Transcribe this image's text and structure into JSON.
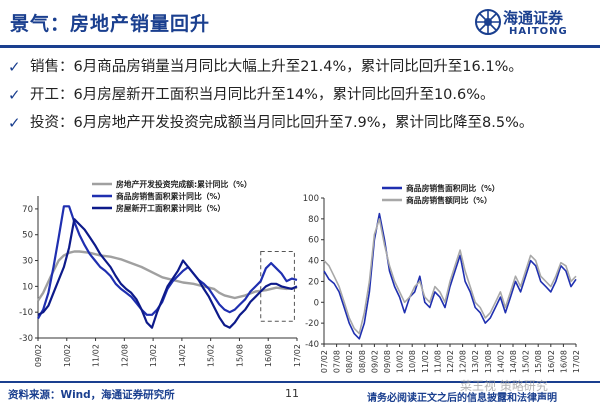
{
  "header": {
    "title": "景气：房地产销量回升"
  },
  "logo": {
    "cn": "海通证券",
    "en": "HAITONG",
    "color": "#1a3f8f"
  },
  "bullets": [
    {
      "icon": "check-icon",
      "text": "销售：6月商品房销量当月同比大幅上升至21.4%，累计同比回升至16.1%。"
    },
    {
      "icon": "check-icon",
      "text": "开工：6月房屋新开工面积当月同比升至14%，累计同比回升至10.6%。"
    },
    {
      "icon": "check-icon",
      "text": "投资：6月房地产开发投资完成额当月同比回升至7.9%，累计同比降至8.5%。"
    }
  ],
  "chart_data": [
    {
      "type": "line",
      "title": "",
      "xlabel": "",
      "ylabel": "",
      "ylim": [
        -30,
        80
      ],
      "yticks": [
        -30,
        -10,
        10,
        30,
        50,
        70
      ],
      "x_ticks": [
        "09/02",
        "10/02",
        "11/02",
        "12/08",
        "13/02",
        "14/02",
        "15/02",
        "15/08",
        "16/08",
        "17/02"
      ],
      "grid": false,
      "legend": "top-right",
      "highlight": "dashed box around 16/02–17/06",
      "series": [
        {
          "name": "房地产开发投资完成额:累计同比（%）",
          "color": "#a0a0a0",
          "width": 2.4,
          "x": [
            0,
            2,
            5,
            8,
            10,
            12,
            14,
            16,
            20,
            24,
            28,
            30,
            32,
            36,
            40,
            44,
            48,
            52,
            56,
            60,
            64,
            68,
            70,
            72,
            76,
            80,
            84,
            88,
            92,
            96,
            100
          ],
          "values": [
            -1,
            5,
            18,
            30,
            34,
            36,
            37,
            37,
            36,
            34,
            33,
            32,
            31,
            28,
            25,
            21,
            17,
            15,
            13,
            12,
            10,
            8,
            5,
            3,
            1,
            3,
            6,
            7,
            9,
            8,
            9
          ]
        },
        {
          "name": "商品房销售面积累计同比（%）",
          "color": "#1f2fb0",
          "width": 2.2,
          "x": [
            0,
            2,
            4,
            6,
            8,
            10,
            12,
            14,
            16,
            18,
            20,
            22,
            24,
            26,
            28,
            30,
            32,
            34,
            36,
            38,
            40,
            42,
            44,
            46,
            48,
            50,
            52,
            54,
            56,
            58,
            60,
            62,
            64,
            66,
            68,
            70,
            72,
            74,
            76,
            78,
            80,
            82,
            84,
            86,
            88,
            90,
            92,
            94,
            96,
            98,
            100
          ],
          "values": [
            -15,
            -8,
            5,
            25,
            48,
            72,
            72,
            60,
            50,
            42,
            35,
            30,
            25,
            22,
            18,
            12,
            8,
            5,
            2,
            -3,
            -8,
            -12,
            -12,
            -8,
            -2,
            8,
            14,
            18,
            22,
            25,
            20,
            15,
            12,
            8,
            2,
            -4,
            -8,
            -10,
            -8,
            -4,
            0,
            6,
            10,
            14,
            24,
            28,
            24,
            20,
            14,
            16,
            15
          ]
        },
        {
          "name": "房屋新开工面积累计同比（%）",
          "color": "#0d1a8a",
          "width": 2.2,
          "x": [
            0,
            2,
            4,
            6,
            8,
            10,
            12,
            14,
            16,
            18,
            20,
            22,
            24,
            26,
            28,
            30,
            32,
            34,
            36,
            38,
            40,
            42,
            44,
            46,
            48,
            50,
            52,
            54,
            56,
            58,
            60,
            62,
            64,
            66,
            68,
            70,
            72,
            74,
            76,
            78,
            80,
            82,
            84,
            86,
            88,
            90,
            92,
            94,
            96,
            98,
            100
          ],
          "values": [
            -12,
            -10,
            -5,
            5,
            15,
            25,
            40,
            62,
            58,
            54,
            48,
            42,
            35,
            30,
            25,
            18,
            12,
            8,
            5,
            0,
            -8,
            -18,
            -22,
            -10,
            0,
            10,
            16,
            22,
            30,
            25,
            20,
            15,
            8,
            2,
            -6,
            -14,
            -20,
            -22,
            -18,
            -12,
            -8,
            -2,
            2,
            6,
            10,
            12,
            12,
            10,
            9,
            8,
            10
          ]
        }
      ]
    },
    {
      "type": "line",
      "title": "",
      "xlabel": "",
      "ylabel": "",
      "ylim": [
        -40,
        100
      ],
      "yticks": [
        -40,
        -20,
        0,
        20,
        40,
        60,
        80,
        100
      ],
      "x_ticks": [
        "07/02",
        "07/08",
        "08/02",
        "08/08",
        "09/02",
        "09/08",
        "10/02",
        "10/08",
        "11/02",
        "11/08",
        "12/02",
        "12/08",
        "13/02",
        "13/08",
        "14/02",
        "14/08",
        "15/02",
        "15/08",
        "16/02",
        "16/08",
        "17/02"
      ],
      "grid": false,
      "legend": "top-right",
      "series": [
        {
          "name": "商品房销售面积同比（%）",
          "color": "#1f2fb0",
          "width": 1.6,
          "x": [
            0,
            2,
            4,
            6,
            8,
            10,
            12,
            14,
            16,
            18,
            20,
            22,
            24,
            26,
            28,
            30,
            32,
            34,
            36,
            38,
            40,
            42,
            44,
            46,
            48,
            50,
            52,
            54,
            56,
            58,
            60,
            62,
            64,
            66,
            68,
            70,
            72,
            74,
            76,
            78,
            80,
            82,
            84,
            86,
            88,
            90,
            92,
            94,
            96,
            98,
            100
          ],
          "values": [
            30,
            22,
            18,
            10,
            -5,
            -20,
            -30,
            -35,
            -20,
            10,
            60,
            85,
            60,
            30,
            15,
            5,
            -10,
            5,
            10,
            25,
            0,
            -5,
            10,
            5,
            -5,
            15,
            30,
            45,
            20,
            10,
            -5,
            -10,
            -20,
            -15,
            -5,
            5,
            -10,
            5,
            20,
            10,
            25,
            40,
            35,
            20,
            15,
            10,
            20,
            35,
            30,
            15,
            22
          ]
        },
        {
          "name": "商品房销售额同比（%）",
          "color": "#a8a8a8",
          "width": 1.6,
          "x": [
            0,
            2,
            4,
            6,
            8,
            10,
            12,
            14,
            16,
            18,
            20,
            22,
            24,
            26,
            28,
            30,
            32,
            34,
            36,
            38,
            40,
            42,
            44,
            46,
            48,
            50,
            52,
            54,
            56,
            58,
            60,
            62,
            64,
            66,
            68,
            70,
            72,
            74,
            76,
            78,
            80,
            82,
            84,
            86,
            88,
            90,
            92,
            94,
            96,
            98,
            100
          ],
          "values": [
            40,
            35,
            25,
            15,
            0,
            -15,
            -25,
            -30,
            -10,
            20,
            65,
            80,
            55,
            35,
            20,
            10,
            0,
            5,
            15,
            20,
            5,
            0,
            15,
            10,
            0,
            20,
            35,
            50,
            30,
            15,
            0,
            -5,
            -15,
            -10,
            0,
            10,
            -5,
            10,
            25,
            15,
            30,
            45,
            40,
            25,
            20,
            15,
            25,
            38,
            35,
            20,
            25
          ]
        }
      ]
    }
  ],
  "footer": {
    "source": "资料来源：Wind，海通证券研究所",
    "page": "11",
    "disclaimer": "请务必阅读正文之后的信息披露和法律声明",
    "watermark": "菜王视 策略研究"
  }
}
